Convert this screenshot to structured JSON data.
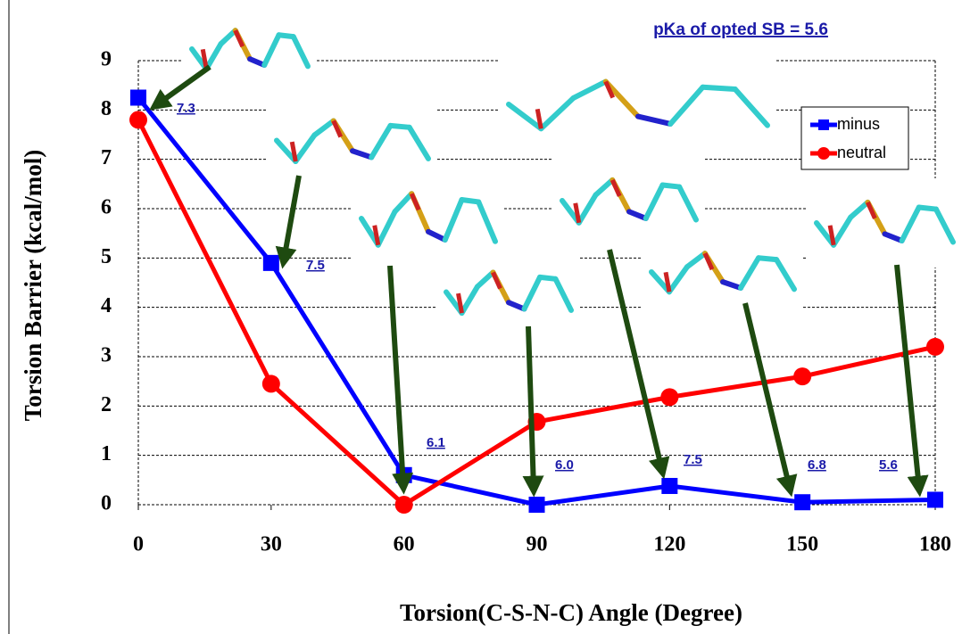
{
  "chart_data": {
    "type": "line",
    "xlabel": "Torsion(C-S-N-C) Angle (Degree)",
    "ylabel": "Torsion Barrier (kcal/mol)",
    "x": [
      0,
      30,
      60,
      90,
      120,
      150,
      180
    ],
    "series": [
      {
        "name": "minus",
        "color": "#0000ff",
        "marker": "square",
        "values": [
          8.25,
          4.9,
          0.6,
          0.0,
          0.38,
          0.05,
          0.1
        ]
      },
      {
        "name": "neutral",
        "color": "#ff0000",
        "marker": "circle",
        "values": [
          7.8,
          2.45,
          0.0,
          1.68,
          2.18,
          2.6,
          3.2
        ]
      }
    ],
    "xlim": [
      0,
      180
    ],
    "xticks": [
      0,
      30,
      60,
      90,
      120,
      150,
      180
    ],
    "ylim": [
      0,
      9
    ],
    "yticks": [
      0,
      1,
      2,
      3,
      4,
      5,
      6,
      7,
      8,
      9
    ],
    "grid": true,
    "legend": "upper right",
    "annotations": [
      "pKa of opted SB = 5.6",
      "7.3",
      "7.5",
      "6.1",
      "6.0",
      "7.5",
      "6.8",
      "5.6"
    ]
  }
}
